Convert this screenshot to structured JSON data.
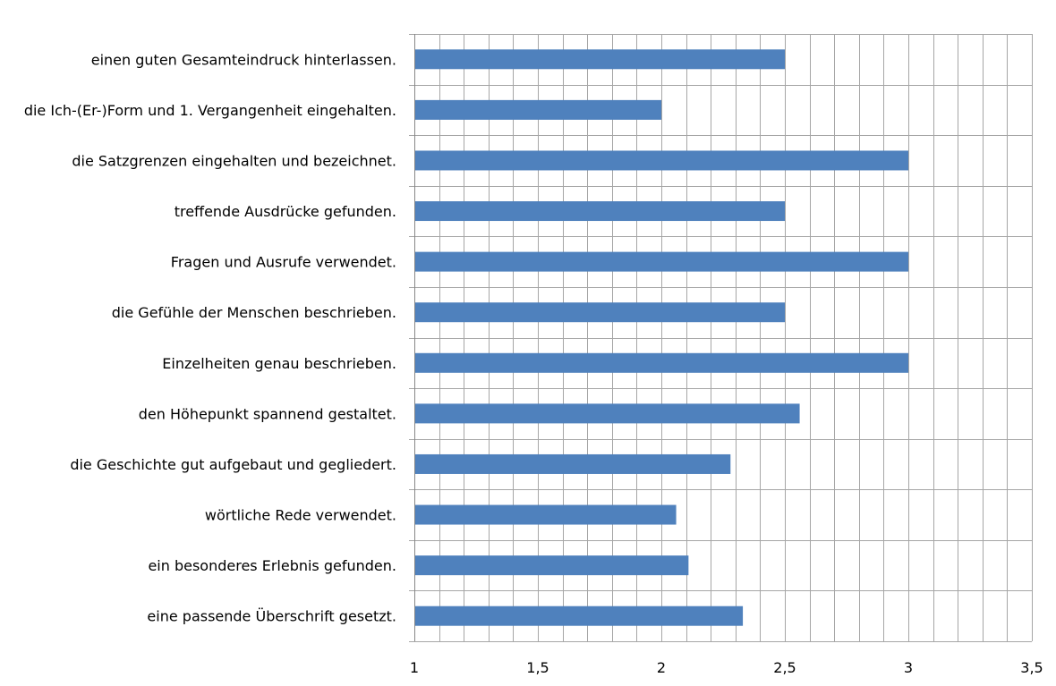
{
  "chart_data": {
    "type": "bar",
    "orientation": "horizontal",
    "title": "",
    "xlabel": "",
    "ylabel": "",
    "xlim": [
      1,
      3.5
    ],
    "x_ticks": [
      1,
      1.5,
      2,
      2.5,
      3,
      3.5
    ],
    "x_tick_labels": [
      "1",
      "1,5",
      "2",
      "2,5",
      "3",
      "3,5"
    ],
    "minor_grid_step": 0.1,
    "grid": true,
    "legend": "none",
    "bar_color": "#4F81BD",
    "grid_color": "#A6A6A6",
    "categories": [
      "einen guten Gesamteindruck hinterlassen.",
      "die Ich-(Er-)Form und 1. Vergangenheit eingehalten.",
      "die Satzgrenzen eingehalten und bezeichnet.",
      "treffende Ausdrücke gefunden.",
      "Fragen und Ausrufe verwendet.",
      "die Gefühle der Menschen beschrieben.",
      "Einzelheiten genau beschrieben.",
      "den Höhepunkt spannend gestaltet.",
      "die Geschichte gut aufgebaut und gegliedert.",
      "wörtliche Rede verwendet.",
      "ein besonderes Erlebnis gefunden.",
      "eine passende Überschrift gesetzt."
    ],
    "values": [
      2.5,
      2.0,
      3.0,
      2.5,
      3.0,
      2.5,
      3.0,
      2.56,
      2.28,
      2.06,
      2.11,
      2.33
    ]
  }
}
